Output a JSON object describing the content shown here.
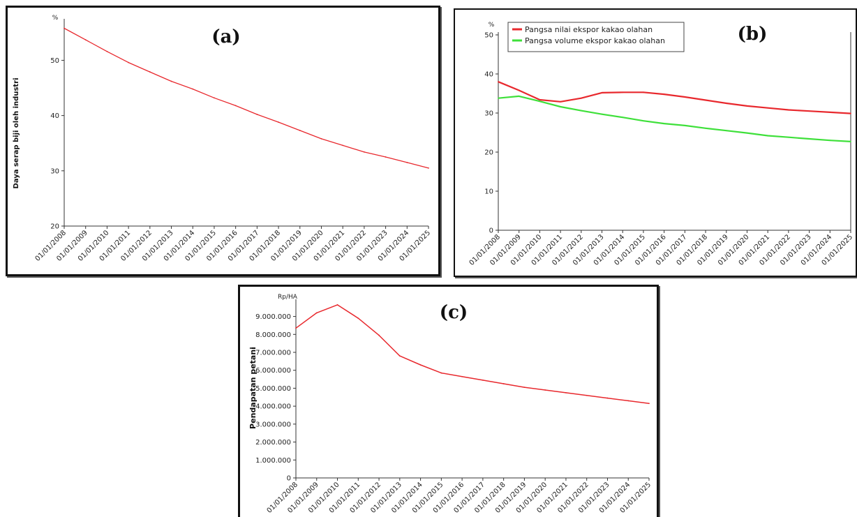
{
  "chart_data": [
    {
      "type": "line",
      "panel_label": "(a)",
      "title": "",
      "ylabel": "Daya serap biji oleh industri",
      "y_unit": "%",
      "xlabel": "",
      "ylim": [
        20,
        57
      ],
      "yticks": [
        20,
        30,
        40,
        50
      ],
      "grid": false,
      "categories": [
        "01/01/2008",
        "01/01/2009",
        "01/01/2010",
        "01/01/2011",
        "01/01/2012",
        "01/01/2013",
        "01/01/2014",
        "01/01/2015",
        "01/01/2016",
        "01/01/2017",
        "01/01/2018",
        "01/01/2019",
        "01/01/2020",
        "01/01/2021",
        "01/01/2022",
        "01/01/2023",
        "01/01/2024",
        "01/01/2025"
      ],
      "series": [
        {
          "color": "#e8282d",
          "values": [
            55.8,
            53.7,
            51.6,
            49.6,
            47.9,
            46.2,
            44.8,
            43.2,
            41.8,
            40.2,
            38.8,
            37.3,
            35.8,
            34.6,
            33.4,
            32.5,
            31.5,
            30.5
          ]
        }
      ]
    },
    {
      "type": "line",
      "panel_label": "(b)",
      "title": "",
      "ylabel": "",
      "y_unit": "%",
      "xlabel": "",
      "ylim": [
        0,
        50
      ],
      "yticks": [
        0,
        10,
        20,
        30,
        40,
        50
      ],
      "grid": false,
      "legend_position": "top-left",
      "categories": [
        "01/01/2008",
        "01/01/2009",
        "01/01/2010",
        "01/01/2011",
        "01/01/2012",
        "01/01/2013",
        "01/01/2014",
        "01/01/2015",
        "01/01/2016",
        "01/01/2017",
        "01/01/2018",
        "01/01/2019",
        "01/01/2020",
        "01/01/2021",
        "01/01/2022",
        "01/01/2023",
        "01/01/2024",
        "01/01/2025"
      ],
      "series": [
        {
          "name": "Pangsa nilai ekspor kakao olahan",
          "color": "#e8282d",
          "values": [
            38.0,
            35.8,
            33.4,
            32.9,
            33.8,
            35.2,
            35.3,
            35.3,
            34.8,
            34.1,
            33.3,
            32.5,
            31.8,
            31.3,
            30.8,
            30.5,
            30.2,
            29.9
          ]
        },
        {
          "name": "Pangsa volume ekspor  kakao olahan",
          "color": "#3ee03a",
          "values": [
            33.8,
            34.3,
            33.0,
            31.6,
            30.6,
            29.7,
            28.9,
            28.0,
            27.3,
            26.8,
            26.1,
            25.5,
            24.9,
            24.2,
            23.8,
            23.4,
            23.0,
            22.7
          ]
        }
      ]
    },
    {
      "type": "line",
      "panel_label": "(c)",
      "title": "",
      "ylabel": "Pendapatan petani",
      "y_unit": "Rp/HA",
      "xlabel": "",
      "ylim": [
        0,
        9800000
      ],
      "yticks": [
        0,
        1000000,
        2000000,
        3000000,
        4000000,
        5000000,
        6000000,
        7000000,
        8000000,
        9000000
      ],
      "ytick_labels": [
        "0",
        "1.000.000",
        "2.000.000",
        "3.000.000",
        "4.000.000",
        "5.000.000",
        "6.000.000",
        "7.000.000",
        "8.000.000",
        "9.000.000"
      ],
      "grid": false,
      "categories": [
        "01/01/2008",
        "01/01/2009",
        "01/01/2010",
        "01/01/2011",
        "01/01/2012",
        "01/01/2013",
        "01/01/2014",
        "01/01/2015",
        "01/01/2016",
        "01/01/2017",
        "01/01/2018",
        "01/01/2019",
        "01/01/2020",
        "01/01/2021",
        "01/01/2022",
        "01/01/2023",
        "01/01/2024",
        "01/01/2025"
      ],
      "series": [
        {
          "color": "#e8282d",
          "values": [
            8350000,
            9200000,
            9650000,
            8900000,
            7950000,
            6800000,
            6300000,
            5850000,
            5650000,
            5450000,
            5250000,
            5050000,
            4900000,
            4750000,
            4600000,
            4450000,
            4300000,
            4150000
          ]
        }
      ]
    }
  ]
}
